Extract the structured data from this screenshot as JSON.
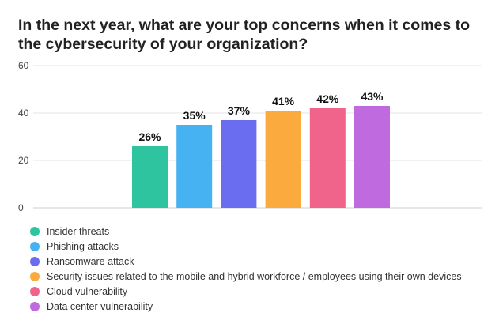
{
  "chart_data": {
    "type": "bar",
    "title": "In the next year, what are your top concerns when it comes to the cybersecurity of your organization?",
    "xlabel": "",
    "ylabel": "",
    "ylim": [
      0,
      60
    ],
    "yticks": [
      0,
      20,
      40,
      60
    ],
    "grid": true,
    "legend_position": "bottom-left",
    "series": [
      {
        "name": "Insider threats",
        "value": 26,
        "label": "26%",
        "color": "#2ec4a0"
      },
      {
        "name": "Phishing attacks",
        "value": 35,
        "label": "35%",
        "color": "#47b2f2"
      },
      {
        "name": "Ransomware attack",
        "value": 37,
        "label": "37%",
        "color": "#6a6df0"
      },
      {
        "name": "Security issues related to the mobile and hybrid workforce / employees using their own devices",
        "value": 41,
        "label": "41%",
        "color": "#fbab3e"
      },
      {
        "name": "Cloud vulnerability",
        "value": 42,
        "label": "42%",
        "color": "#f0648c"
      },
      {
        "name": "Data center vulnerability",
        "value": 43,
        "label": "43%",
        "color": "#c06ae0"
      }
    ]
  }
}
